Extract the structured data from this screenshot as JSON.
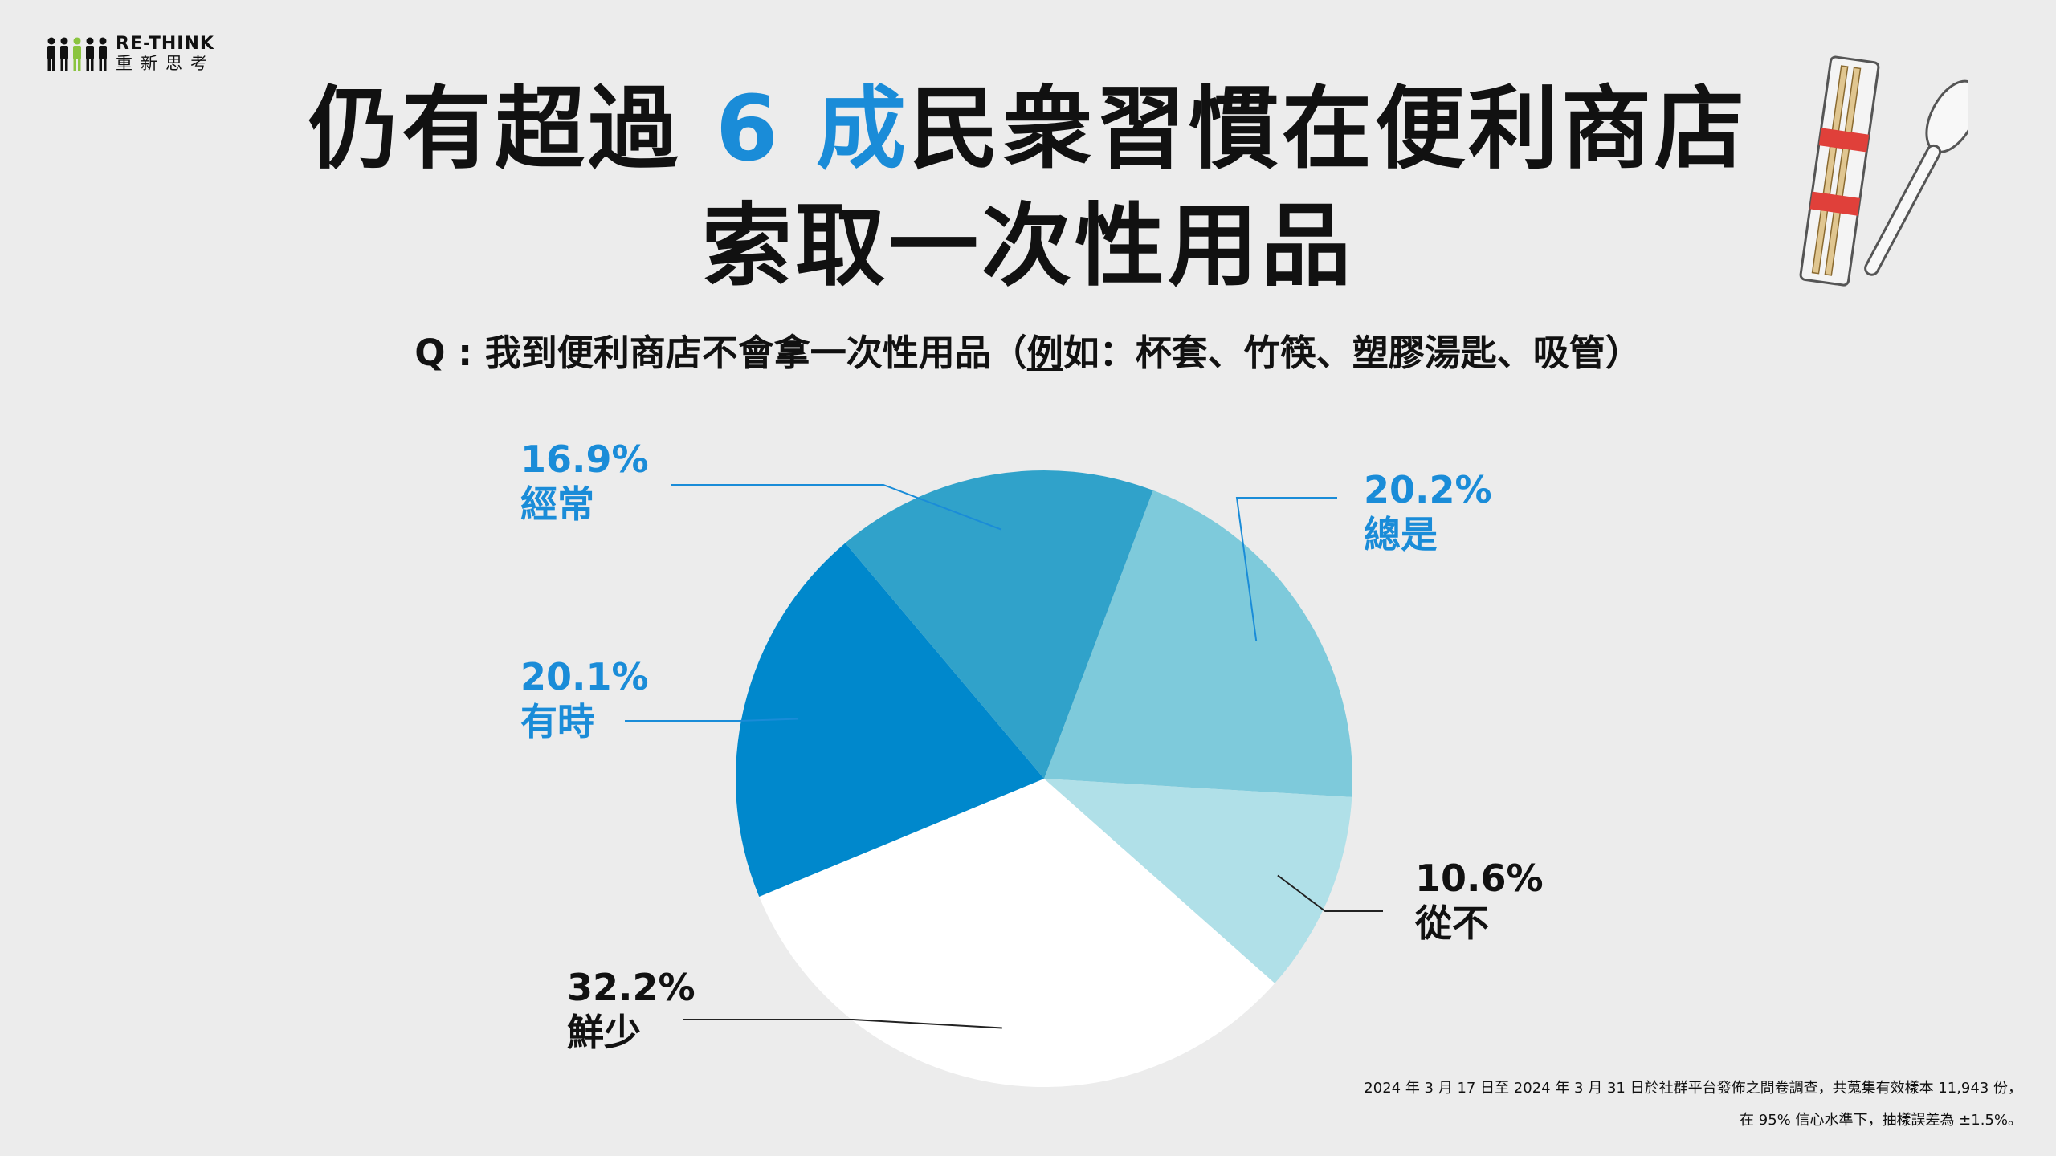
{
  "logo": {
    "brand_en": "RE-THINK",
    "brand_zh": "重新思考"
  },
  "title": {
    "line1_before": "仍有超過",
    "line1_highlight": "6 成",
    "line1_after": "民衆習慣在便利商店",
    "line2": "索取一次性用品"
  },
  "question": {
    "prefix": "Q : 我到便利商店不會拿一次性用品（",
    "underlined": "例",
    "suffix": "如：杯套、竹筷、塑膠湯匙、吸管）"
  },
  "chart_data": {
    "type": "pie",
    "slices": [
      {
        "label": "總是",
        "value": 20.2,
        "value_label": "20.2%",
        "color": "#7ecadb"
      },
      {
        "label": "從不",
        "value": 10.6,
        "value_label": "10.6%",
        "color": "#b0e0e8"
      },
      {
        "label": "鮮少",
        "value": 32.2,
        "value_label": "32.2%",
        "color": "#ffffff"
      },
      {
        "label": "有時",
        "value": 20.1,
        "value_label": "20.1%",
        "color": "#0088cc"
      },
      {
        "label": "經常",
        "value": 16.9,
        "value_label": "16.9%",
        "color": "#30a2ca"
      }
    ]
  },
  "footnote": {
    "line1": "2024 年 3 月 17 日至 2024 年 3 月 31 日於社群平台發佈之問卷調查，共蒐集有效樣本 11,943 份，",
    "line2": "在 95% 信心水準下，抽樣誤差為 ±1.5%。"
  },
  "icons": [
    "person-icon",
    "chopsticks-spoon-icon"
  ],
  "colors": {
    "accent": "#1a8cd8",
    "background": "#ececec"
  }
}
